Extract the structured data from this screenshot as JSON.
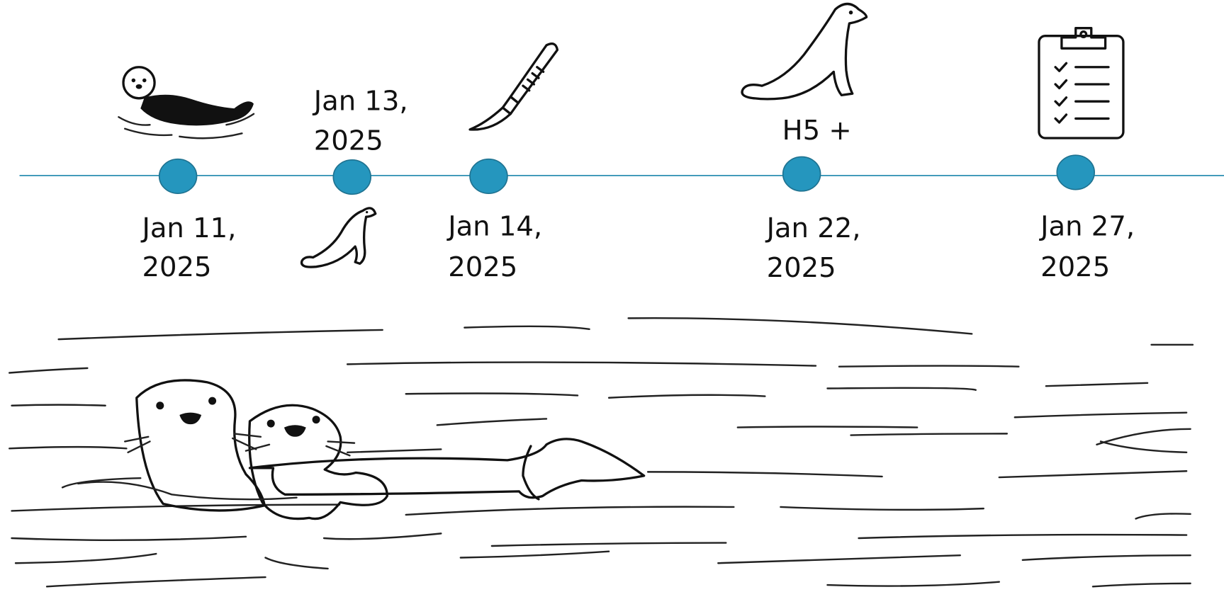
{
  "timeline": {
    "events": [
      {
        "date_lines": [
          "Jan 11,",
          "2025"
        ]
      },
      {
        "date_lines": [
          "Jan 13,",
          "2025"
        ]
      },
      {
        "date_lines": [
          "Jan 14,",
          "2025"
        ]
      },
      {
        "date_lines": [
          "Jan 22,",
          "2025"
        ],
        "note": "H5 +"
      },
      {
        "date_lines": [
          "Jan 27,",
          "2025"
        ]
      }
    ]
  }
}
